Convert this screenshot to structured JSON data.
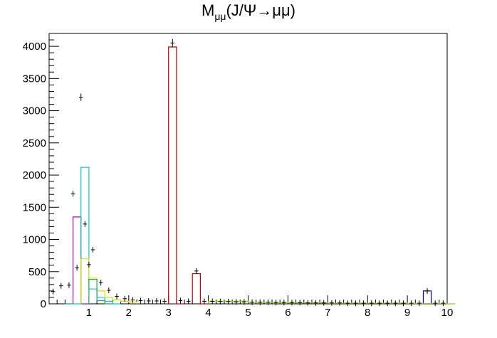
{
  "title": {
    "main": "M",
    "sub": "μμ",
    "rest": "(J/Ψ→μμ)"
  },
  "chart_data": {
    "type": "bar",
    "style": "ROOT histogram stack with data points",
    "xlim": [
      0,
      10
    ],
    "ylim": [
      0,
      4200
    ],
    "bin_width": 0.2,
    "x_ticks": [
      "1",
      "2",
      "3",
      "4",
      "5",
      "6",
      "7",
      "8",
      "9",
      "10"
    ],
    "y_ticks": [
      "0",
      "500",
      "1000",
      "1500",
      "2000",
      "2500",
      "3000",
      "3500",
      "4000"
    ],
    "grid": false,
    "legend": "none",
    "colors": {
      "jpsi": "#cc0000",
      "psi2s": "#cc0000",
      "upsilon": "#0000cc",
      "omega": "#bb00bb",
      "rho": "#00cccc",
      "phi": "#22aa66",
      "continuum": "#dddd00",
      "other": "#88cc00",
      "data": "#000000"
    },
    "histograms": [
      {
        "name": "",
        "color_key": "omega",
        "bins": [
          [
            0.4,
            0
          ],
          [
            0.6,
            1350
          ],
          [
            0.8,
            0
          ]
        ]
      },
      {
        "name": "",
        "color_key": "rho",
        "bins": [
          [
            0.4,
            0
          ],
          [
            0.6,
            0
          ],
          [
            0.8,
            2120
          ],
          [
            1.0,
            230
          ],
          [
            1.2,
            100
          ],
          [
            1.4,
            40
          ],
          [
            1.6,
            0
          ]
        ]
      },
      {
        "name": "",
        "color_key": "continuum",
        "bins": [
          [
            0.8,
            700
          ],
          [
            1.0,
            400
          ],
          [
            1.2,
            200
          ],
          [
            1.4,
            100
          ],
          [
            1.6,
            60
          ],
          [
            1.8,
            40
          ],
          [
            2.0,
            30
          ]
        ]
      },
      {
        "name": "",
        "color_key": "phi",
        "bins": [
          [
            1.0,
            380
          ],
          [
            1.2,
            50
          ],
          [
            1.4,
            0
          ]
        ]
      },
      {
        "name": "",
        "color_key": "jpsi",
        "bins": [
          [
            3.0,
            3990
          ],
          [
            3.2,
            0
          ]
        ]
      },
      {
        "name": "",
        "color_key": "psi2s",
        "bins": [
          [
            3.6,
            470
          ],
          [
            3.8,
            0
          ]
        ]
      },
      {
        "name": "",
        "color_key": "upsilon",
        "bins": [
          [
            9.4,
            200
          ],
          [
            9.6,
            0
          ]
        ]
      },
      {
        "name": "",
        "color_key": "other",
        "bins": [
          [
            4.0,
            40
          ],
          [
            5.0,
            25
          ],
          [
            6.0,
            15
          ],
          [
            7.0,
            10
          ],
          [
            8.0,
            10
          ],
          [
            9.0,
            5
          ],
          [
            10.0,
            0
          ]
        ]
      }
    ],
    "data_points": [
      [
        0.1,
        190
      ],
      [
        0.3,
        280
      ],
      [
        0.5,
        290
      ],
      [
        0.6,
        1710
      ],
      [
        0.7,
        560
      ],
      [
        0.8,
        3210
      ],
      [
        0.9,
        1240
      ],
      [
        1.0,
        610
      ],
      [
        1.1,
        840
      ],
      [
        1.3,
        330
      ],
      [
        1.5,
        210
      ],
      [
        1.7,
        115
      ],
      [
        1.9,
        80
      ],
      [
        2.1,
        60
      ],
      [
        2.3,
        50
      ],
      [
        2.5,
        45
      ],
      [
        2.7,
        45
      ],
      [
        2.9,
        40
      ],
      [
        3.1,
        4050
      ],
      [
        3.3,
        50
      ],
      [
        3.5,
        40
      ],
      [
        3.7,
        510
      ],
      [
        3.9,
        40
      ],
      [
        4.1,
        40
      ],
      [
        4.3,
        35
      ],
      [
        4.5,
        35
      ],
      [
        4.7,
        30
      ],
      [
        4.9,
        30
      ],
      [
        5.1,
        25
      ],
      [
        5.3,
        25
      ],
      [
        5.5,
        25
      ],
      [
        5.7,
        20
      ],
      [
        5.9,
        20
      ],
      [
        6.1,
        20
      ],
      [
        6.3,
        20
      ],
      [
        6.5,
        15
      ],
      [
        6.7,
        15
      ],
      [
        6.9,
        15
      ],
      [
        7.1,
        15
      ],
      [
        7.3,
        15
      ],
      [
        7.5,
        10
      ],
      [
        7.7,
        10
      ],
      [
        7.9,
        10
      ],
      [
        8.1,
        10
      ],
      [
        8.3,
        10
      ],
      [
        8.5,
        10
      ],
      [
        8.7,
        10
      ],
      [
        8.9,
        10
      ],
      [
        9.1,
        10
      ],
      [
        9.3,
        10
      ],
      [
        9.5,
        200
      ],
      [
        9.7,
        10
      ],
      [
        9.9,
        10
      ]
    ]
  }
}
